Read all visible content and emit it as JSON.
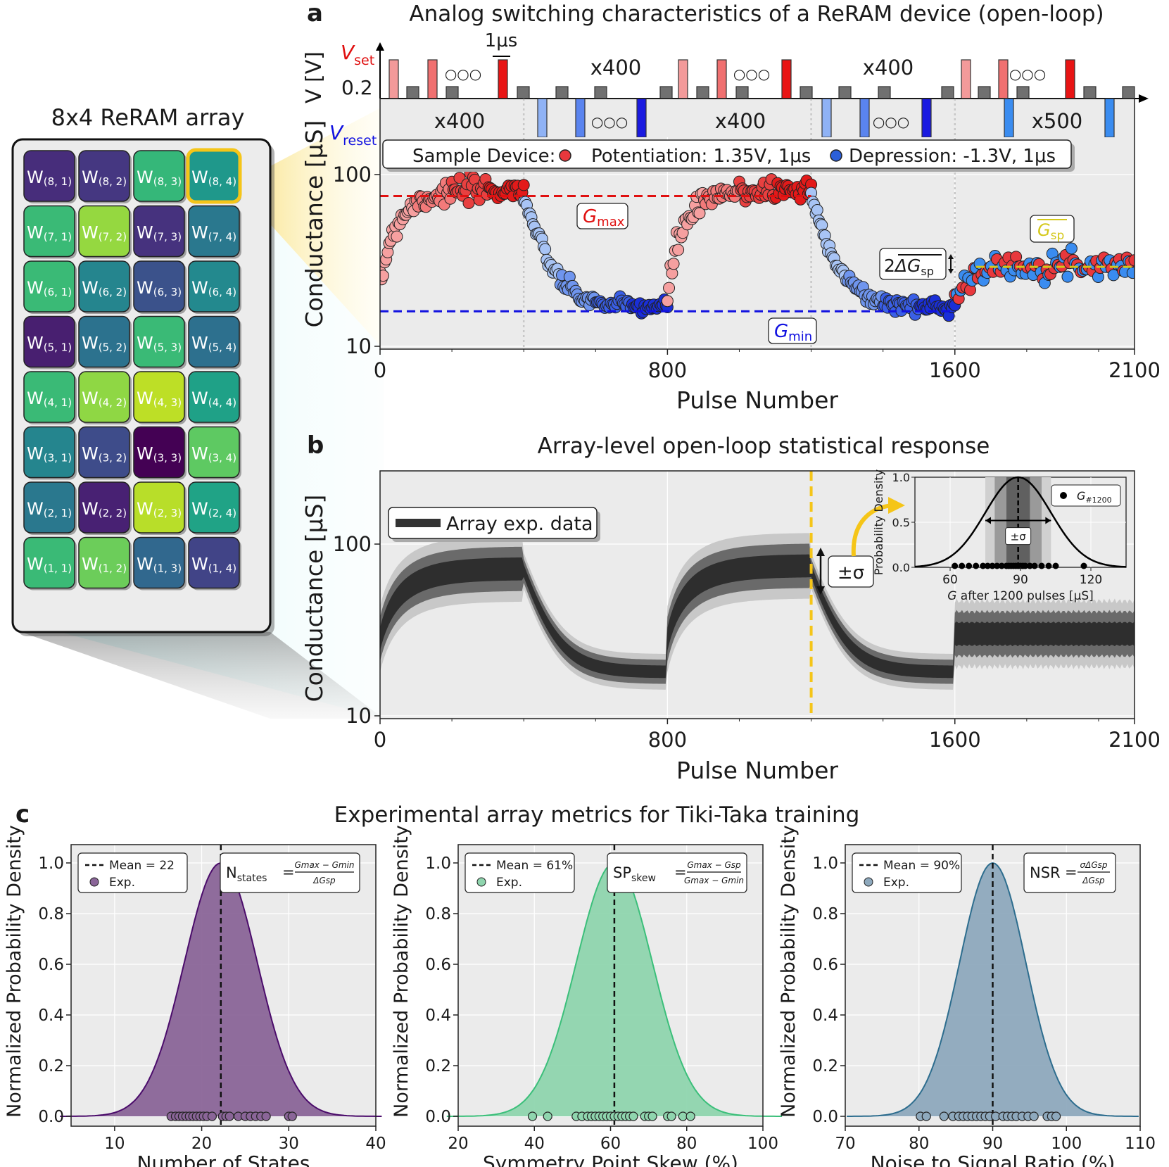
{
  "panel_labels": {
    "a": "a",
    "b": "b",
    "c": "c"
  },
  "array": {
    "title": "8x4 ReRAM array",
    "cells": [
      [
        "W(8, 1)",
        "W(8, 2)",
        "W(8, 3)",
        "W(8, 4)"
      ],
      [
        "W(7, 1)",
        "W(7, 2)",
        "W(7, 3)",
        "W(7, 4)"
      ],
      [
        "W(6, 1)",
        "W(6, 2)",
        "W(6, 3)",
        "W(6, 4)"
      ],
      [
        "W(5, 1)",
        "W(5, 2)",
        "W(5, 3)",
        "W(5, 4)"
      ],
      [
        "W(4, 1)",
        "W(4, 2)",
        "W(4, 3)",
        "W(4, 4)"
      ],
      [
        "W(3, 1)",
        "W(3, 2)",
        "W(3, 3)",
        "W(3, 4)"
      ],
      [
        "W(2, 1)",
        "W(2, 2)",
        "W(2, 3)",
        "W(2, 4)"
      ],
      [
        "W(1, 1)",
        "W(1, 2)",
        "W(1, 3)",
        "W(1, 4)"
      ]
    ],
    "colors": [
      [
        "#472d7b",
        "#453781",
        "#35b779",
        "#1f988b"
      ],
      [
        "#3aba76",
        "#95d840",
        "#46327e",
        "#2a788e"
      ],
      [
        "#3aba76",
        "#25858e",
        "#3b528b",
        "#23898e"
      ],
      [
        "#481f70",
        "#2c728e",
        "#3aba76",
        "#2d708e"
      ],
      [
        "#3aba76",
        "#8fd744",
        "#bddf26",
        "#1fa187"
      ],
      [
        "#25858e",
        "#3e4c8a",
        "#440154",
        "#5ec962"
      ],
      [
        "#2a788e",
        "#482173",
        "#b8de29",
        "#20a386"
      ],
      [
        "#3aba76",
        "#6ccd5a",
        "#31688e",
        "#414487"
      ]
    ],
    "highlight_color": "#f5c518"
  },
  "chart_data": [
    {
      "panel": "a",
      "type": "scatter",
      "title": "Analog switching characteristics of a ReRAM device (open-loop)",
      "xlabel": "Pulse Number",
      "ylabel": "Conductance [μS]",
      "xlim": [
        0,
        2100
      ],
      "ylim": [
        10,
        200
      ],
      "yscale": "log",
      "xticks": [
        "0",
        "800",
        "1600",
        "2100"
      ],
      "yticks": [
        "10",
        "100"
      ],
      "grid": true,
      "legend": {
        "label": "Sample Device:",
        "potentiation": "Potentiation: 1.35V, 1μs",
        "depression": "Depression: -1.3V, 1μs"
      },
      "pulse_scheme": {
        "v_axis": "V [V]",
        "v_set": "V",
        "v_set_sub": "set",
        "v_read": "0.2",
        "v_reset": "V",
        "v_reset_sub": "reset",
        "width_label": "1μs",
        "counts": [
          "x400",
          "x400",
          "x400",
          "x400",
          "x500"
        ],
        "ellipsis": "○○○"
      },
      "g_max": 75,
      "g_min": 16,
      "labels": {
        "g_max": "G",
        "g_max_sub": "max",
        "g_min": "G",
        "g_min_sub": "min",
        "g_sp": "G",
        "g_sp_sub": "sp",
        "dg_sp_prefix": "2",
        "dg_sp": "ΔG",
        "dg_sp_sub": "sp"
      },
      "segments": [
        {
          "phase": "potentiation",
          "x": [
            0,
            400
          ],
          "start": 20,
          "end": 82
        },
        {
          "phase": "depression",
          "x": [
            400,
            800
          ],
          "start": 75,
          "end": 17
        },
        {
          "phase": "potentiation",
          "x": [
            800,
            1200
          ],
          "start": 18,
          "end": 82
        },
        {
          "phase": "depression",
          "x": [
            1200,
            1600
          ],
          "start": 75,
          "end": 17
        },
        {
          "phase": "alternating",
          "x": [
            1600,
            2100
          ],
          "start": 20,
          "end": 30
        }
      ],
      "colors": {
        "potentiation": "#e8383d",
        "depression": "#2b5fd9",
        "g_max": "#e01010",
        "g_min": "#1010e0",
        "g_sp": "#d4c81a"
      }
    },
    {
      "panel": "b",
      "type": "area",
      "title": "Array-level open-loop statistical response",
      "xlabel": "Pulse Number",
      "ylabel": "Conductance [μS]",
      "xlim": [
        0,
        2100
      ],
      "ylim": [
        10,
        200
      ],
      "yscale": "log",
      "xticks": [
        "0",
        "800",
        "1600",
        "2100"
      ],
      "yticks": [
        "10",
        "100"
      ],
      "legend": "Array exp. data",
      "marker_x": 1200,
      "sigma_label": "±σ",
      "inset": {
        "xlabel": "G after 1200 pulses [μS]",
        "xlabel_prefix": "G",
        "xlabel_rest": " after 1200 pulses [μS]",
        "ylabel": "Probability Density",
        "xticks": [
          "60",
          "90",
          "120"
        ],
        "yticks": [
          "0.0",
          "0.5",
          "1.0"
        ],
        "legend": "G#1200",
        "legend_main": "G",
        "legend_sub": "#1200",
        "mean": 89,
        "sigma_label": "±σ",
        "points": [
          62,
          65,
          68,
          71,
          74,
          76,
          78,
          80,
          82,
          84,
          85,
          86,
          87,
          88,
          89,
          90,
          91,
          92,
          94,
          96,
          99,
          102,
          105,
          117
        ]
      }
    },
    {
      "panel": "c",
      "type": "area",
      "title": "Experimental array metrics for Tiki-Taka training",
      "subplots": [
        {
          "xlabel": "Number of States",
          "ylabel": "Normalized Probability Density",
          "xlim": [
            5,
            40
          ],
          "xticks": [
            "10",
            "20",
            "30",
            "40"
          ],
          "yticks": [
            "0.0",
            "0.2",
            "0.4",
            "0.6",
            "0.8",
            "1.0"
          ],
          "mean": 22.2,
          "sigma": 4.2,
          "legend_mean": "Mean = 22",
          "legend_exp": "Exp.",
          "formula_lhs": "N",
          "formula_lhs_sub": "states",
          "formula_num": "G_max − G_min",
          "formula_den": "ΔG_sp",
          "color": "#4b0c6b",
          "fill": "#8a6598",
          "points": [
            16.5,
            17,
            17.4,
            17.8,
            18.2,
            18.6,
            19,
            19.4,
            19.8,
            20.2,
            20.6,
            21.2,
            22.4,
            22.8,
            23.2,
            24.2,
            25,
            25.6,
            26.2,
            26.8,
            27.4,
            30,
            30.4
          ]
        },
        {
          "xlabel": "Symmetry Point Skew (%)",
          "ylabel": "Normalized Probability Density",
          "xlim": [
            20,
            100
          ],
          "xticks": [
            "20",
            "40",
            "60",
            "80",
            "100"
          ],
          "yticks": [
            "0.0",
            "0.2",
            "0.4",
            "0.6",
            "0.8",
            "1.0"
          ],
          "mean": 61,
          "sigma": 10,
          "legend_mean": "Mean = 61%",
          "legend_exp": "Exp.",
          "formula_lhs": "SP",
          "formula_lhs_sub": "skew",
          "formula_num": "G_max − G_sp",
          "formula_den": "G_max − G_min",
          "color": "#3bbf7a",
          "fill": "#8fd5ae",
          "points": [
            39.5,
            43.5,
            51,
            52.5,
            54,
            55,
            56,
            57,
            58,
            59,
            60,
            61,
            62,
            63,
            64,
            65,
            66,
            69,
            70,
            71,
            75,
            76,
            79,
            81
          ]
        },
        {
          "xlabel": "Noise to Signal Ratio (%)",
          "ylabel": "Normalized Probability Density",
          "xlim": [
            70,
            110
          ],
          "xticks": [
            "70",
            "80",
            "90",
            "100",
            "110"
          ],
          "yticks": [
            "0.0",
            "0.2",
            "0.4",
            "0.6",
            "0.8",
            "1.0"
          ],
          "mean": 90,
          "sigma": 4.5,
          "legend_mean": "Mean = 90%",
          "legend_exp": "Exp.",
          "formula_lhs": "NSR",
          "formula_num": "σ_ΔGsp",
          "formula_den": "ΔG_sp",
          "color": "#2d6d8e",
          "fill": "#8ea9bd",
          "points": [
            80.2,
            81,
            83.4,
            84.6,
            85.4,
            86,
            86.6,
            87.2,
            87.8,
            88.4,
            89,
            89.6,
            90.4,
            91.4,
            92,
            92.6,
            93.2,
            94,
            94.8,
            95.6,
            97.4,
            98,
            98.6
          ]
        }
      ]
    }
  ]
}
